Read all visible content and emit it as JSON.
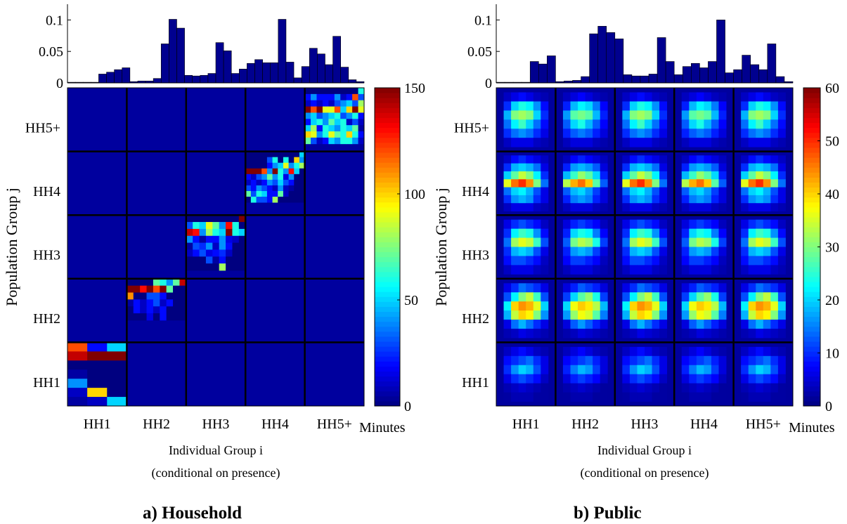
{
  "colorscale": "jet",
  "chart_data": [
    {
      "type": "heatmap",
      "panel_caption": "a) Household",
      "xlabel_line1": "Individual Group i",
      "xlabel_line2": "(conditional on presence)",
      "ylabel": "Population Group j",
      "x_groups": [
        "HH1",
        "HH2",
        "HH3",
        "HH4",
        "HH5+"
      ],
      "y_groups": [
        "HH1",
        "HH2",
        "HH3",
        "HH4",
        "HH5+"
      ],
      "colorbar": {
        "label": "Minutes",
        "min": 0,
        "max": 150,
        "ticks": [
          0,
          50,
          100,
          150
        ]
      },
      "marginal_hist": {
        "yticks": [
          0,
          0.05,
          0.1
        ],
        "ylim": [
          0,
          0.125
        ],
        "values": [
          0.001,
          0.001,
          0.001,
          0.001,
          0.014,
          0.017,
          0.021,
          0.024,
          0.002,
          0.003,
          0.003,
          0.007,
          0.062,
          0.101,
          0.087,
          0.012,
          0.011,
          0.012,
          0.015,
          0.064,
          0.051,
          0.015,
          0.022,
          0.031,
          0.037,
          0.032,
          0.032,
          0.101,
          0.033,
          0.008,
          0.026,
          0.055,
          0.046,
          0.029,
          0.074,
          0.025,
          0.005,
          0.002
        ]
      },
      "block_rows_by_y_group": {
        "HH1": [
          [
            120,
            20,
            50
          ],
          [
            140,
            150,
            150
          ],
          [
            0,
            0,
            0
          ],
          [
            5,
            0,
            0
          ],
          [
            40,
            0,
            0
          ],
          [
            10,
            100,
            0
          ],
          [
            5,
            10,
            50
          ]
        ],
        "HH2": [
          [
            0,
            0,
            0,
            0,
            70,
            60,
            40,
            70,
            140
          ],
          [
            150,
            150,
            130,
            150,
            120,
            150,
            70,
            0,
            0
          ],
          [
            110,
            0,
            0,
            30,
            30,
            20,
            0,
            0,
            0
          ],
          [
            5,
            20,
            10,
            20,
            30,
            10,
            20,
            0,
            0
          ],
          [
            0,
            20,
            10,
            20,
            10,
            20,
            0,
            0,
            0
          ],
          [
            0,
            0,
            0,
            15,
            0,
            20,
            0,
            0,
            0
          ]
        ],
        "HH3": [
          [
            0,
            0,
            0,
            0,
            0,
            0,
            0,
            0,
            150
          ],
          [
            30,
            60,
            50,
            90,
            70,
            40,
            130,
            60,
            0
          ],
          [
            140,
            130,
            40,
            80,
            60,
            50,
            150,
            60,
            50
          ],
          [
            40,
            20,
            5,
            20,
            20,
            40,
            15,
            10,
            0
          ],
          [
            5,
            30,
            25,
            40,
            10,
            40,
            20,
            0,
            0
          ],
          [
            10,
            20,
            30,
            15,
            20,
            25,
            10,
            0,
            0
          ],
          [
            0,
            0,
            0,
            30,
            5,
            20,
            0,
            0,
            0
          ],
          [
            0,
            0,
            0,
            0,
            0,
            80,
            0,
            0,
            0
          ]
        ],
        "HH4": [
          [
            0,
            0,
            0,
            0,
            0,
            0,
            0,
            0,
            0,
            0,
            50
          ],
          [
            0,
            0,
            0,
            0,
            30,
            60,
            0,
            60,
            0,
            100,
            40
          ],
          [
            0,
            0,
            0,
            0,
            20,
            40,
            50,
            90,
            40,
            60,
            80
          ],
          [
            150,
            150,
            150,
            120,
            40,
            150,
            60,
            40,
            130,
            50,
            0
          ],
          [
            20,
            10,
            30,
            40,
            70,
            40,
            60,
            15,
            40,
            0,
            0
          ],
          [
            10,
            20,
            10,
            20,
            40,
            30,
            50,
            30,
            20,
            0,
            0
          ],
          [
            30,
            20,
            40,
            30,
            20,
            10,
            40,
            10,
            5,
            0,
            0
          ],
          [
            70,
            30,
            60,
            50,
            20,
            20,
            70,
            10,
            0,
            0,
            0
          ],
          [
            0,
            60,
            30,
            30,
            20,
            80,
            0,
            0,
            0,
            0,
            0
          ]
        ],
        "HH5+": [
          [
            0,
            0,
            0,
            0,
            0,
            0,
            0,
            0,
            0,
            60
          ],
          [
            20,
            40,
            20,
            20,
            20,
            40,
            10,
            20,
            120,
            30
          ],
          [
            10,
            20,
            10,
            20,
            10,
            30,
            40,
            50,
            30,
            80
          ],
          [
            150,
            120,
            150,
            90,
            90,
            120,
            50,
            100,
            150,
            90
          ],
          [
            40,
            50,
            30,
            40,
            50,
            60,
            30,
            40,
            60,
            20
          ],
          [
            20,
            50,
            60,
            40,
            70,
            50,
            60,
            10,
            30,
            10
          ],
          [
            50,
            80,
            20,
            60,
            50,
            40,
            60,
            50,
            70,
            5
          ],
          [
            100,
            90,
            40,
            60,
            90,
            70,
            60,
            100,
            60,
            20
          ],
          [
            70,
            30,
            10,
            20,
            50,
            40,
            60,
            60,
            40,
            10
          ]
        ]
      }
    },
    {
      "type": "heatmap",
      "panel_caption": "b) Public",
      "xlabel_line1": "Individual Group i",
      "xlabel_line2": "(conditional on presence)",
      "ylabel": "Population Group j",
      "x_groups": [
        "HH1",
        "HH2",
        "HH3",
        "HH4",
        "HH5+"
      ],
      "y_groups": [
        "HH1",
        "HH2",
        "HH3",
        "HH4",
        "HH5+"
      ],
      "colorbar": {
        "label": "Minutes",
        "min": 0,
        "max": 60,
        "ticks": [
          0,
          10,
          20,
          30,
          40,
          50,
          60
        ]
      },
      "marginal_hist": {
        "yticks": [
          0,
          0.05,
          0.1
        ],
        "ylim": [
          0,
          0.125
        ],
        "values": [
          0.001,
          0.001,
          0.001,
          0.001,
          0.034,
          0.03,
          0.043,
          0.002,
          0.003,
          0.004,
          0.01,
          0.078,
          0.09,
          0.08,
          0.07,
          0.013,
          0.011,
          0.011,
          0.014,
          0.072,
          0.034,
          0.013,
          0.026,
          0.031,
          0.024,
          0.034,
          0.1,
          0.016,
          0.021,
          0.044,
          0.029,
          0.021,
          0.062,
          0.01,
          0.002
        ]
      },
      "block_rows_by_y_group": {
        "HH1": [
          [
            4,
            6,
            8,
            6,
            4,
            3
          ],
          [
            8,
            10,
            12,
            14,
            10,
            6
          ],
          [
            10,
            16,
            20,
            18,
            12,
            6
          ],
          [
            6,
            10,
            12,
            10,
            8,
            4
          ],
          [
            3,
            4,
            5,
            4,
            3,
            2
          ],
          [
            2,
            3,
            3,
            3,
            2,
            2
          ]
        ],
        "HH2": [
          [
            6,
            10,
            14,
            12,
            10,
            6
          ],
          [
            12,
            22,
            30,
            34,
            26,
            12
          ],
          [
            22,
            40,
            44,
            42,
            36,
            20
          ],
          [
            18,
            34,
            40,
            38,
            30,
            16
          ],
          [
            6,
            14,
            18,
            14,
            10,
            6
          ],
          [
            3,
            4,
            6,
            5,
            4,
            3
          ]
        ],
        "HH3": [
          [
            6,
            10,
            12,
            10,
            8,
            4
          ],
          [
            10,
            22,
            26,
            24,
            16,
            8
          ],
          [
            14,
            32,
            36,
            34,
            26,
            12
          ],
          [
            10,
            18,
            20,
            18,
            12,
            6
          ],
          [
            8,
            12,
            12,
            10,
            8,
            4
          ],
          [
            4,
            6,
            6,
            6,
            4,
            3
          ]
        ],
        "HH4": [
          [
            4,
            8,
            10,
            8,
            6,
            4
          ],
          [
            10,
            18,
            20,
            18,
            14,
            6
          ],
          [
            20,
            28,
            34,
            30,
            22,
            10
          ],
          [
            36,
            46,
            50,
            44,
            30,
            14
          ],
          [
            14,
            20,
            22,
            18,
            12,
            6
          ],
          [
            10,
            16,
            18,
            16,
            10,
            6
          ],
          [
            4,
            6,
            6,
            6,
            4,
            3
          ]
        ],
        "HH5+": [
          [
            4,
            6,
            8,
            6,
            4,
            3
          ],
          [
            10,
            20,
            24,
            22,
            16,
            8
          ],
          [
            18,
            30,
            32,
            30,
            20,
            10
          ],
          [
            14,
            22,
            26,
            20,
            14,
            8
          ],
          [
            10,
            14,
            16,
            14,
            10,
            6
          ],
          [
            4,
            6,
            6,
            6,
            4,
            3
          ]
        ]
      }
    }
  ]
}
